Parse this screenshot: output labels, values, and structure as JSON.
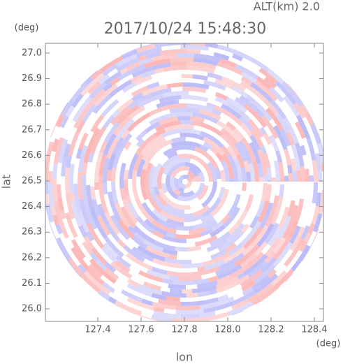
{
  "chart_data": {
    "type": "ppi",
    "title": "2017/10/24 15:48:30",
    "subtitle": "ALT(km) 2.0",
    "x_label": "lon",
    "y_label": "lat",
    "x_unit": "(deg)",
    "y_unit": "(deg)",
    "xlim": [
      127.158,
      128.442
    ],
    "ylim": [
      25.951,
      27.038
    ],
    "xticks": [
      127.4,
      127.6,
      127.8,
      {
        "value": 128.0,
        "label": "128.0"
      },
      128.2,
      128.4
    ],
    "yticks": [
      {
        "value": 26.0,
        "label": "26.0"
      },
      26.1,
      26.2,
      26.3,
      26.4,
      26.5,
      26.6,
      26.7,
      26.8,
      26.9,
      {
        "value": 27.0,
        "label": "27.0"
      }
    ]
  }
}
